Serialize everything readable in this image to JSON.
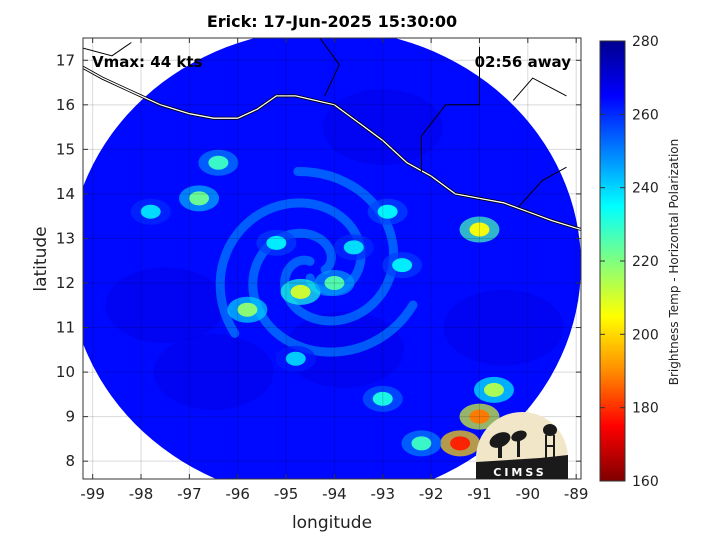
{
  "title": "Erick: 17-Jun-2025 15:30:00",
  "vmax_label": "Vmax: 44 kts",
  "time_away_label": "02:56 away",
  "xlabel": "longitude",
  "ylabel": "latitude",
  "logo_text": "CIMSS",
  "colorbar": {
    "label": "Brightness Temp - Horizontal Polarization",
    "min": 160,
    "max": 280,
    "ticks": [
      160,
      180,
      200,
      220,
      240,
      260,
      280
    ],
    "colors": [
      "#7f0000",
      "#ff0000",
      "#ff8c00",
      "#ffff00",
      "#80ff80",
      "#00ffff",
      "#0080ff",
      "#0000ff",
      "#00008f"
    ]
  },
  "chart_data": {
    "type": "heatmap",
    "xlim": [
      -99.2,
      -88.9
    ],
    "ylim": [
      7.6,
      17.5
    ],
    "xticks": [
      -99,
      -98,
      -97,
      -96,
      -95,
      -94,
      -93,
      -92,
      -91,
      -90,
      -89
    ],
    "yticks": [
      8,
      9,
      10,
      11,
      12,
      13,
      14,
      15,
      16,
      17
    ],
    "grid": true,
    "swath_center": [
      -94.2,
      12.4
    ],
    "swath_radius_deg": 5.3,
    "background_tb": 264,
    "storm_center": [
      -94.4,
      12.3
    ],
    "features": [
      {
        "x": -94.7,
        "y": 11.8,
        "tb": 210
      },
      {
        "x": -94.0,
        "y": 12.0,
        "tb": 225
      },
      {
        "x": -95.8,
        "y": 11.4,
        "tb": 218
      },
      {
        "x": -95.2,
        "y": 12.9,
        "tb": 236
      },
      {
        "x": -93.6,
        "y": 12.8,
        "tb": 238
      },
      {
        "x": -92.6,
        "y": 12.4,
        "tb": 236
      },
      {
        "x": -92.9,
        "y": 13.6,
        "tb": 235
      },
      {
        "x": -91.0,
        "y": 13.2,
        "tb": 205
      },
      {
        "x": -96.8,
        "y": 13.9,
        "tb": 222
      },
      {
        "x": -96.4,
        "y": 14.7,
        "tb": 228
      },
      {
        "x": -97.8,
        "y": 13.6,
        "tb": 238
      },
      {
        "x": -93.0,
        "y": 9.4,
        "tb": 232
      },
      {
        "x": -94.8,
        "y": 10.3,
        "tb": 240
      },
      {
        "x": -91.0,
        "y": 9.0,
        "tb": 188
      },
      {
        "x": -91.4,
        "y": 8.4,
        "tb": 178
      },
      {
        "x": -90.7,
        "y": 9.6,
        "tb": 214
      },
      {
        "x": -92.2,
        "y": 8.4,
        "tb": 228
      }
    ]
  }
}
